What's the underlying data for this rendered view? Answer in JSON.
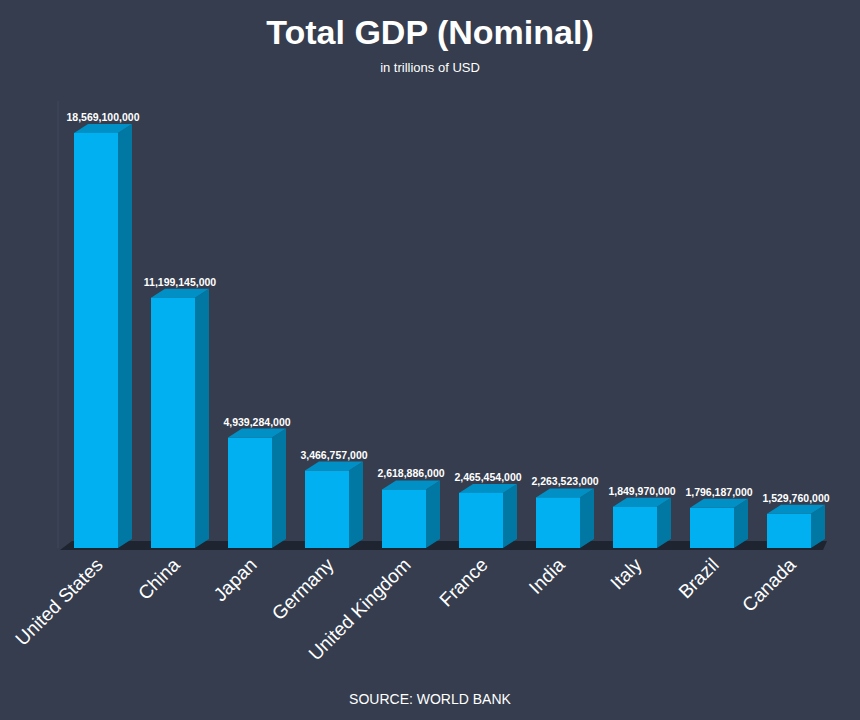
{
  "chart_data": {
    "type": "bar",
    "title": "Total GDP (Nominal)",
    "subtitle": "in trillions of USD",
    "source": "SOURCE: WORLD BANK",
    "categories": [
      "United States",
      "China",
      "Japan",
      "Germany",
      "United Kingdom",
      "France",
      "India",
      "Italy",
      "Brazil",
      "Canada"
    ],
    "values": [
      18569100000,
      11199145000,
      4939284000,
      3466757000,
      2618886000,
      2465454000,
      2263523000,
      1849970000,
      1796187000,
      1529760000
    ],
    "value_labels": [
      "18,569,100,000",
      "11,199,145,000",
      "4,939,284,000",
      "3,466,757,000",
      "2,618,886,000",
      "2,465,454,000",
      "2,263,523,000",
      "1,849,970,000",
      "1,796,187,000",
      "1,529,760,000"
    ],
    "color": "#00b0f0",
    "ylim": [
      0,
      20000000000
    ],
    "yticks": [],
    "grid": false,
    "data_labels": true,
    "tick_labels": "x"
  }
}
